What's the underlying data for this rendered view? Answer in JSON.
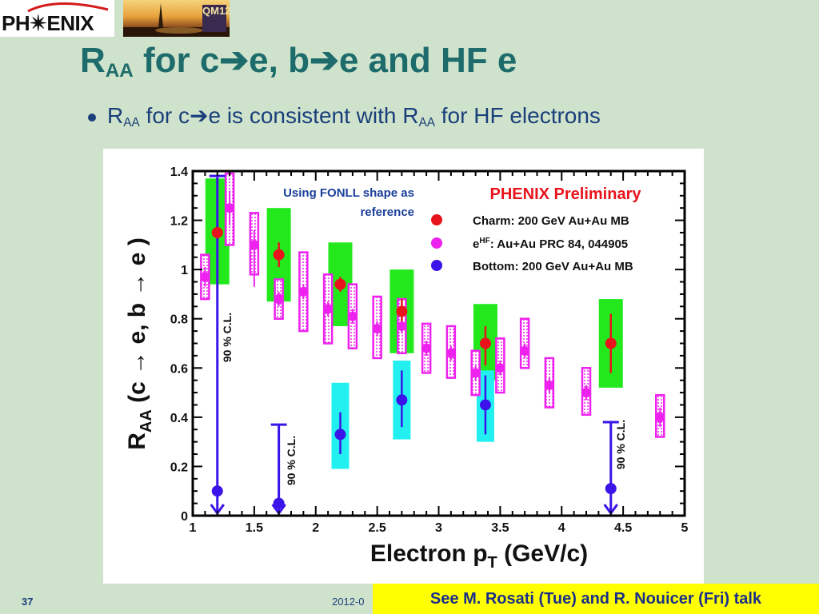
{
  "header": {
    "logo_text": "PH✴ENIX",
    "photo_badge": "QM12",
    "title_main": "R",
    "title_sub": "AA",
    "title_rest": " for c➔e, b➔e and HF e"
  },
  "bullet": {
    "r": "R",
    "sub1": "AA",
    "middle": " for c➔e is consistent with R",
    "sub2": "AA",
    "end": " for HF electrons"
  },
  "footer": {
    "slide_number": "37",
    "date": "2012-0",
    "note": "See M. Rosati (Tue) and R. Nouicer (Fri) talk"
  },
  "chart_data": {
    "type": "scatter",
    "xlabel": "Electron p_T (GeV/c)",
    "ylabel": "R_AA (c → e, b → e )",
    "xlim": [
      1,
      5
    ],
    "ylim": [
      0,
      1.4
    ],
    "xticks": [
      "1",
      "1.5",
      "2",
      "2.5",
      "3",
      "3.5",
      "4",
      "4.5",
      "5"
    ],
    "yticks": [
      "0",
      "0.2",
      "0.4",
      "0.6",
      "0.8",
      "1",
      "1.2",
      "1.4"
    ],
    "title": "PHENIX Preliminary",
    "annotation": "Using FONLL shape as reference",
    "annotation_line1": "Using FONLL shape as",
    "annotation_line2": "reference",
    "cl_label": "90 % C.L.",
    "legend_position": "top-right",
    "colors": {
      "charm": "#e8141c",
      "charm_box": "#22e81c",
      "hf": "#ee22ee",
      "hf_box": "#ee22ee",
      "bottom": "#3a14e8",
      "bottom_box": "#22f0f0"
    },
    "series": [
      {
        "name": "Charm: 200 GeV Au+Au MB",
        "legend_label": "Charm: 200 GeV Au+Au MB",
        "points": [
          {
            "x": 1.2,
            "y": 1.15,
            "lo": 1.05,
            "hi": 1.25,
            "sys_lo": 0.94,
            "sys_hi": 1.37
          },
          {
            "x": 1.7,
            "y": 1.06,
            "lo": 1.01,
            "hi": 1.11,
            "sys_lo": 0.87,
            "sys_hi": 1.25
          },
          {
            "x": 2.2,
            "y": 0.94,
            "lo": 0.91,
            "hi": 0.97,
            "sys_lo": 0.77,
            "sys_hi": 1.11
          },
          {
            "x": 2.7,
            "y": 0.83,
            "lo": 0.79,
            "hi": 0.88,
            "sys_lo": 0.66,
            "sys_hi": 1.0
          },
          {
            "x": 3.38,
            "y": 0.7,
            "lo": 0.61,
            "hi": 0.77,
            "sys_lo": 0.55,
            "sys_hi": 0.86
          },
          {
            "x": 4.4,
            "y": 0.7,
            "lo": 0.58,
            "hi": 0.82,
            "sys_lo": 0.52,
            "sys_hi": 0.88
          }
        ]
      },
      {
        "name": "e^HF: Au+Au PRC 84, 044905",
        "legend_label": "Au+Au PRC 84, 044905",
        "points": [
          {
            "x": 1.1,
            "y": 0.97,
            "lo": 0.93,
            "hi": 1.01,
            "sys_lo": 0.88,
            "sys_hi": 1.06
          },
          {
            "x": 1.3,
            "y": 1.25,
            "lo": 1.18,
            "hi": 1.32,
            "sys_lo": 1.1,
            "sys_hi": 1.39
          },
          {
            "x": 1.5,
            "y": 1.1,
            "lo": 0.93,
            "hi": 1.16,
            "sys_lo": 0.98,
            "sys_hi": 1.23
          },
          {
            "x": 1.7,
            "y": 0.88,
            "lo": 0.85,
            "hi": 0.91,
            "sys_lo": 0.8,
            "sys_hi": 0.96
          },
          {
            "x": 1.9,
            "y": 0.91,
            "lo": 0.88,
            "hi": 0.94,
            "sys_lo": 0.75,
            "sys_hi": 1.07
          },
          {
            "x": 2.1,
            "y": 0.84,
            "lo": 0.81,
            "hi": 0.87,
            "sys_lo": 0.7,
            "sys_hi": 0.98
          },
          {
            "x": 2.3,
            "y": 0.81,
            "lo": 0.78,
            "hi": 0.84,
            "sys_lo": 0.68,
            "sys_hi": 0.94
          },
          {
            "x": 2.5,
            "y": 0.76,
            "lo": 0.73,
            "hi": 0.79,
            "sys_lo": 0.64,
            "sys_hi": 0.89
          },
          {
            "x": 2.7,
            "y": 0.77,
            "lo": 0.74,
            "hi": 0.8,
            "sys_lo": 0.66,
            "sys_hi": 0.88
          },
          {
            "x": 2.9,
            "y": 0.68,
            "lo": 0.65,
            "hi": 0.71,
            "sys_lo": 0.58,
            "sys_hi": 0.78
          },
          {
            "x": 3.1,
            "y": 0.66,
            "lo": 0.63,
            "hi": 0.69,
            "sys_lo": 0.56,
            "sys_hi": 0.77
          },
          {
            "x": 3.3,
            "y": 0.58,
            "lo": 0.55,
            "hi": 0.61,
            "sys_lo": 0.49,
            "sys_hi": 0.67
          },
          {
            "x": 3.5,
            "y": 0.6,
            "lo": 0.57,
            "hi": 0.63,
            "sys_lo": 0.5,
            "sys_hi": 0.72
          },
          {
            "x": 3.7,
            "y": 0.67,
            "lo": 0.64,
            "hi": 0.7,
            "sys_lo": 0.6,
            "sys_hi": 0.8
          },
          {
            "x": 3.9,
            "y": 0.53,
            "lo": 0.5,
            "hi": 0.56,
            "sys_lo": 0.44,
            "sys_hi": 0.64
          },
          {
            "x": 4.2,
            "y": 0.5,
            "lo": 0.47,
            "hi": 0.53,
            "sys_lo": 0.41,
            "sys_hi": 0.6
          },
          {
            "x": 4.8,
            "y": 0.4,
            "lo": 0.36,
            "hi": 0.44,
            "sys_lo": 0.32,
            "sys_hi": 0.49
          }
        ]
      },
      {
        "name": "Bottom: 200 GeV Au+Au MB",
        "legend_label": "Bottom: 200 GeV Au+Au MB",
        "points": [
          {
            "x": 1.2,
            "y": 0.1,
            "upper_limit": 1.38
          },
          {
            "x": 1.7,
            "y": 0.05,
            "upper_limit": 0.37
          },
          {
            "x": 2.2,
            "y": 0.33,
            "lo": 0.25,
            "hi": 0.42,
            "sys_lo": 0.19,
            "sys_hi": 0.54
          },
          {
            "x": 2.7,
            "y": 0.47,
            "lo": 0.36,
            "hi": 0.59,
            "sys_lo": 0.31,
            "sys_hi": 0.63
          },
          {
            "x": 3.38,
            "y": 0.45,
            "lo": 0.33,
            "hi": 0.57,
            "sys_lo": 0.3,
            "sys_hi": 0.59
          },
          {
            "x": 4.4,
            "y": 0.11,
            "upper_limit": 0.38
          }
        ]
      }
    ]
  }
}
